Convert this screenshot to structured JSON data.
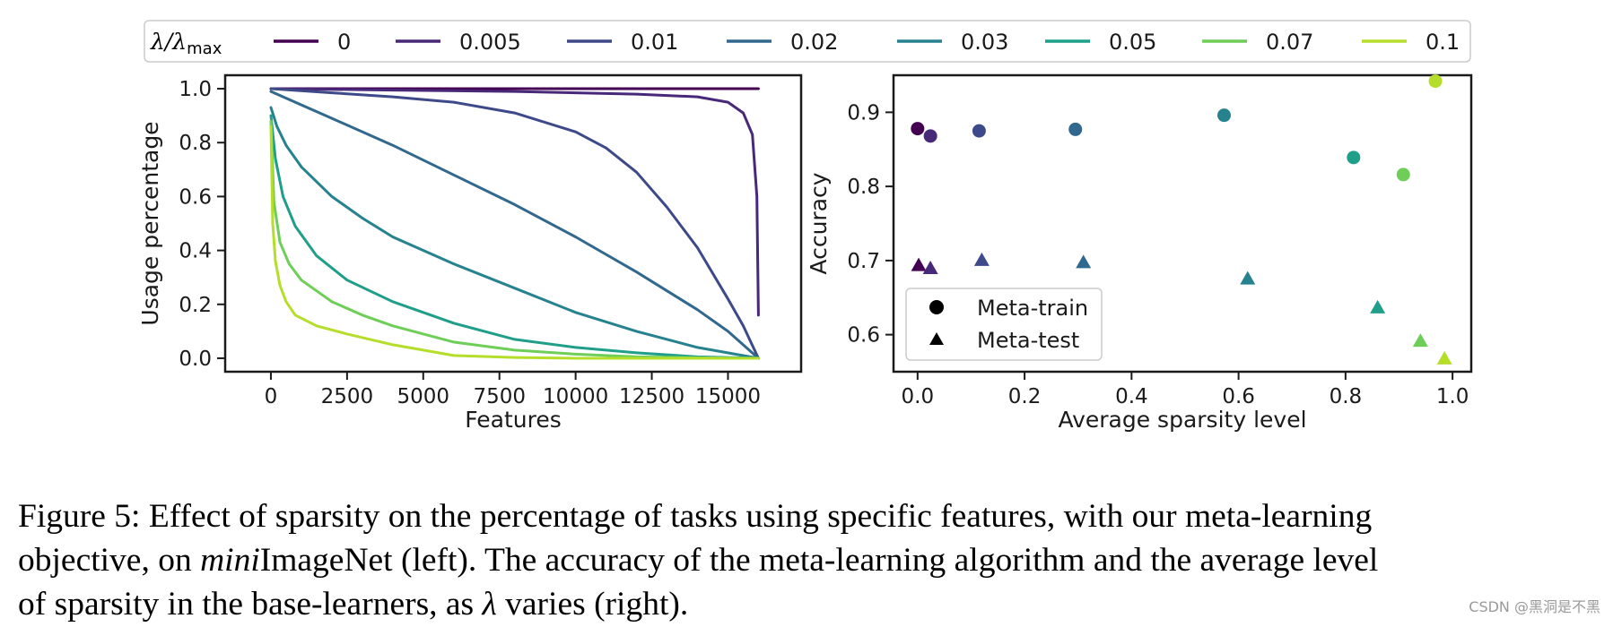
{
  "legend": {
    "title": "λ/λ",
    "title_sub": "max",
    "entries": [
      {
        "label": "0",
        "color": "#440154"
      },
      {
        "label": "0.005",
        "color": "#482878"
      },
      {
        "label": "0.01",
        "color": "#3e4989"
      },
      {
        "label": "0.02",
        "color": "#31688e"
      },
      {
        "label": "0.03",
        "color": "#26828e"
      },
      {
        "label": "0.05",
        "color": "#1f9e89"
      },
      {
        "label": "0.07",
        "color": "#6ece58"
      },
      {
        "label": "0.1",
        "color": "#b5de2b"
      }
    ]
  },
  "chart_data": [
    {
      "type": "line",
      "xlabel": "Features",
      "ylabel": "Usage percentage",
      "xlim": [
        -1500,
        17400
      ],
      "ylim": [
        -0.05,
        1.05
      ],
      "xticks": [
        0,
        2500,
        5000,
        7500,
        10000,
        12500,
        15000
      ],
      "yticks": [
        0.0,
        0.2,
        0.4,
        0.6,
        0.8,
        1.0
      ],
      "series": [
        {
          "name": "0",
          "color": "#440154",
          "x": [
            0,
            4000,
            8000,
            12000,
            16000
          ],
          "y": [
            1.0,
            1.0,
            1.0,
            1.0,
            1.0
          ]
        },
        {
          "name": "0.005",
          "color": "#482878",
          "x": [
            0,
            4000,
            8000,
            12000,
            14000,
            15000,
            15500,
            15800,
            15950,
            16000
          ],
          "y": [
            1.0,
            0.995,
            0.99,
            0.98,
            0.97,
            0.95,
            0.91,
            0.83,
            0.6,
            0.16
          ]
        },
        {
          "name": "0.01",
          "color": "#3e4989",
          "x": [
            0,
            2000,
            4000,
            6000,
            8000,
            10000,
            11000,
            12000,
            13000,
            14000,
            15000,
            15500,
            16000
          ],
          "y": [
            1.0,
            0.985,
            0.97,
            0.95,
            0.91,
            0.84,
            0.78,
            0.69,
            0.56,
            0.41,
            0.22,
            0.12,
            0.0
          ]
        },
        {
          "name": "0.02",
          "color": "#31688e",
          "x": [
            0,
            1000,
            2000,
            4000,
            6000,
            8000,
            10000,
            12000,
            14000,
            15000,
            16000
          ],
          "y": [
            0.99,
            0.94,
            0.89,
            0.79,
            0.68,
            0.57,
            0.45,
            0.32,
            0.18,
            0.1,
            0.0
          ]
        },
        {
          "name": "0.03",
          "color": "#26828e",
          "x": [
            0,
            200,
            500,
            1000,
            2000,
            3000,
            4000,
            6000,
            8000,
            10000,
            12000,
            14000,
            16000
          ],
          "y": [
            0.93,
            0.86,
            0.79,
            0.71,
            0.6,
            0.52,
            0.45,
            0.35,
            0.26,
            0.17,
            0.1,
            0.04,
            0.0
          ]
        },
        {
          "name": "0.05",
          "color": "#1f9e89",
          "x": [
            0,
            150,
            400,
            800,
            1500,
            2500,
            4000,
            6000,
            8000,
            10000,
            12000,
            14000,
            16000
          ],
          "y": [
            0.9,
            0.74,
            0.6,
            0.49,
            0.38,
            0.29,
            0.21,
            0.13,
            0.07,
            0.04,
            0.02,
            0.005,
            0.0
          ]
        },
        {
          "name": "0.07",
          "color": "#6ece58",
          "x": [
            0,
            100,
            300,
            600,
            1000,
            2000,
            3000,
            4000,
            6000,
            8000,
            10000,
            12000,
            14000,
            16000
          ],
          "y": [
            0.88,
            0.58,
            0.43,
            0.35,
            0.29,
            0.21,
            0.16,
            0.12,
            0.06,
            0.03,
            0.015,
            0.005,
            0.002,
            0.0
          ]
        },
        {
          "name": "0.1",
          "color": "#b5de2b",
          "x": [
            0,
            60,
            150,
            300,
            500,
            800,
            1500,
            2500,
            4000,
            6000,
            8000,
            10000,
            12000,
            16000
          ],
          "y": [
            0.86,
            0.5,
            0.36,
            0.27,
            0.21,
            0.16,
            0.12,
            0.09,
            0.05,
            0.01,
            0.003,
            0.0,
            0.0,
            0.0
          ]
        }
      ]
    },
    {
      "type": "scatter",
      "xlabel": "Average sparsity level",
      "ylabel": "Accuracy",
      "xlim": [
        -0.045,
        1.035
      ],
      "ylim": [
        0.55,
        0.95
      ],
      "xticks": [
        0.0,
        0.2,
        0.4,
        0.6,
        0.8,
        1.0
      ],
      "yticks": [
        0.6,
        0.7,
        0.8,
        0.9
      ],
      "series": [
        {
          "name": "Meta-train",
          "marker": "circle",
          "points": [
            {
              "x": 0.0,
              "y": 0.878,
              "color": "#440154"
            },
            {
              "x": 0.024,
              "y": 0.868,
              "color": "#482878"
            },
            {
              "x": 0.115,
              "y": 0.875,
              "color": "#3e4989"
            },
            {
              "x": 0.295,
              "y": 0.877,
              "color": "#31688e"
            },
            {
              "x": 0.573,
              "y": 0.896,
              "color": "#26828e"
            },
            {
              "x": 0.815,
              "y": 0.839,
              "color": "#1f9e89"
            },
            {
              "x": 0.908,
              "y": 0.816,
              "color": "#6ece58"
            },
            {
              "x": 0.968,
              "y": 0.942,
              "color": "#b5de2b"
            }
          ]
        },
        {
          "name": "Meta-test",
          "marker": "triangle",
          "points": [
            {
              "x": 0.002,
              "y": 0.693,
              "color": "#440154"
            },
            {
              "x": 0.024,
              "y": 0.689,
              "color": "#482878"
            },
            {
              "x": 0.12,
              "y": 0.7,
              "color": "#3e4989"
            },
            {
              "x": 0.31,
              "y": 0.697,
              "color": "#31688e"
            },
            {
              "x": 0.617,
              "y": 0.675,
              "color": "#26828e"
            },
            {
              "x": 0.86,
              "y": 0.636,
              "color": "#1f9e89"
            },
            {
              "x": 0.94,
              "y": 0.591,
              "color": "#6ece58"
            },
            {
              "x": 0.985,
              "y": 0.567,
              "color": "#b5de2b"
            }
          ]
        }
      ],
      "legend_entries": [
        "Meta-train",
        "Meta-test"
      ]
    }
  ],
  "caption": {
    "prefix": "Figure 5: Effect of sparsity on the percentage of tasks using specific features, with our meta-learning",
    "line2_a": "objective, on ",
    "line2_italic": "mini",
    "line2_b": "ImageNet (left). The accuracy of the meta-learning algorithm and the average level",
    "line3_a": "of sparsity in the base-learners, as ",
    "line3_lambda": "λ",
    "line3_b": " varies (right)."
  },
  "watermark": "CSDN @黑洞是不黑"
}
